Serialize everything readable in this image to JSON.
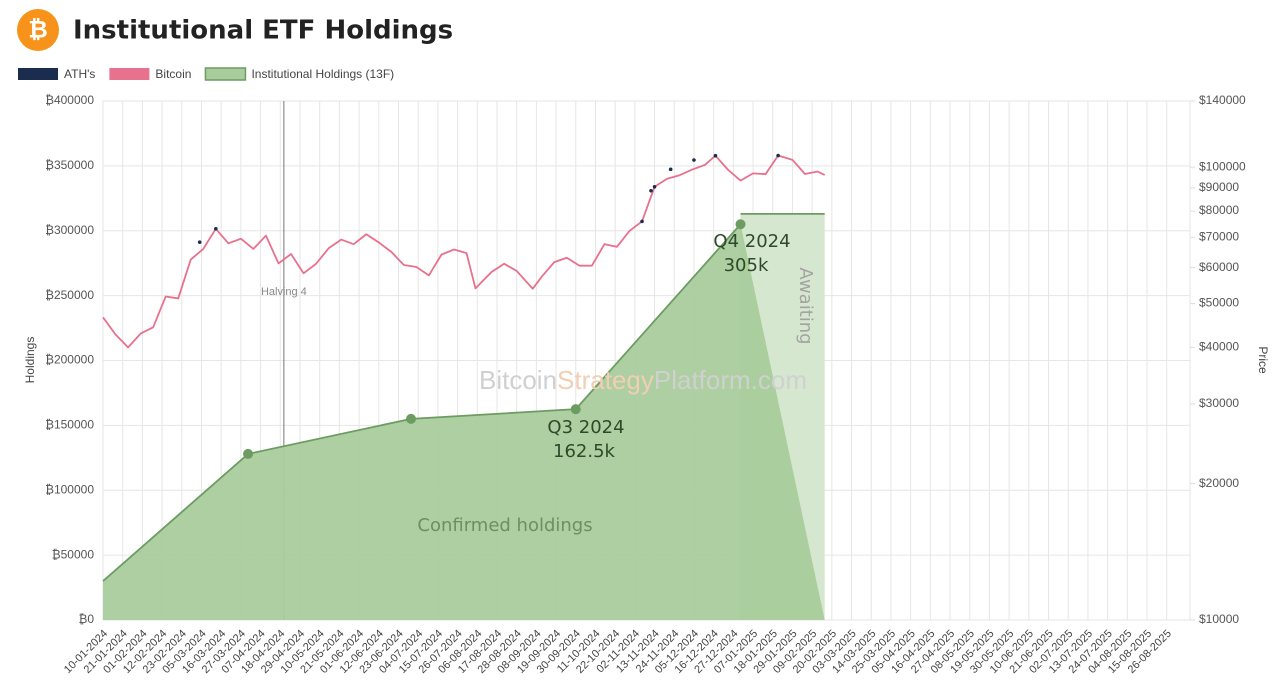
{
  "chart_data": {
    "type": "combo",
    "logo": "₿",
    "title": "Institutional ETF Holdings",
    "ylabel": "Holdings",
    "y2label": "Price",
    "y2_log": true,
    "grid": true,
    "legend": "top-left",
    "xlim": [
      "10-01-2024",
      "08-09-2025"
    ],
    "xticks": [
      "10-01-2024",
      "21-01-2024",
      "01-02-2024",
      "12-02-2024",
      "23-02-2024",
      "05-03-2024",
      "16-03-2024",
      "27-03-2024",
      "07-04-2024",
      "18-04-2024",
      "29-04-2024",
      "10-05-2024",
      "21-05-2024",
      "01-06-2024",
      "12-06-2024",
      "23-06-2024",
      "04-07-2024",
      "15-07-2024",
      "26-07-2024",
      "06-08-2024",
      "17-08-2024",
      "28-08-2024",
      "08-09-2024",
      "19-09-2024",
      "30-09-2024",
      "11-10-2024",
      "22-10-2024",
      "02-11-2024",
      "13-11-2024",
      "24-11-2024",
      "05-12-2024",
      "16-12-2024",
      "27-12-2024",
      "07-01-2025",
      "18-01-2025",
      "29-01-2025",
      "09-02-2025",
      "20-02-2025",
      "03-03-2025",
      "14-03-2025",
      "25-03-2025",
      "05-04-2025",
      "16-04-2025",
      "27-04-2025",
      "08-05-2025",
      "19-05-2025",
      "30-05-2025",
      "10-06-2025",
      "21-06-2025",
      "02-07-2025",
      "13-07-2025",
      "24-07-2025",
      "04-08-2025",
      "15-08-2025",
      "26-08-2025"
    ],
    "ylim": [
      0,
      400000
    ],
    "yticks": [
      {
        "value": 0,
        "label": "₿0"
      },
      {
        "value": 50000,
        "label": "₿50000"
      },
      {
        "value": 100000,
        "label": "₿100000"
      },
      {
        "value": 150000,
        "label": "₿150000"
      },
      {
        "value": 200000,
        "label": "₿200000"
      },
      {
        "value": 250000,
        "label": "₿250000"
      },
      {
        "value": 300000,
        "label": "₿300000"
      },
      {
        "value": 350000,
        "label": "₿350000"
      },
      {
        "value": 400000,
        "label": "₿400000"
      }
    ],
    "y2lim": [
      10000,
      140000
    ],
    "y2ticks": [
      {
        "value": 10000,
        "label": "$10000"
      },
      {
        "value": 20000,
        "label": "$20000"
      },
      {
        "value": 30000,
        "label": "$30000"
      },
      {
        "value": 40000,
        "label": "$40000"
      },
      {
        "value": 50000,
        "label": "$50000"
      },
      {
        "value": 60000,
        "label": "$60000"
      },
      {
        "value": 70000,
        "label": "$70000"
      },
      {
        "value": 80000,
        "label": "$80000"
      },
      {
        "value": 90000,
        "label": "$90000"
      },
      {
        "value": 100000,
        "label": "$100000"
      },
      {
        "value": 140000,
        "label": "$140000"
      }
    ],
    "series": [
      {
        "name": "ATH's",
        "type": "scatter",
        "axis": "y2",
        "color": "#1b2d4f",
        "x": [
          "04-03-2024",
          "13-03-2024",
          "06-11-2024",
          "11-11-2024",
          "13-11-2024",
          "22-11-2024",
          "05-12-2024",
          "17-12-2024",
          "21-01-2025"
        ],
        "values": [
          68300,
          73100,
          75900,
          88700,
          90500,
          98900,
          103700,
          106000,
          106100
        ]
      },
      {
        "name": "Bitcoin",
        "type": "line",
        "axis": "y2",
        "color": "#e8718d",
        "x": [
          "10-01-2024",
          "17-01-2024",
          "24-01-2024",
          "31-01-2024",
          "07-02-2024",
          "14-02-2024",
          "21-02-2024",
          "28-02-2024",
          "06-03-2024",
          "13-03-2024",
          "20-03-2024",
          "27-03-2024",
          "03-04-2024",
          "10-04-2024",
          "17-04-2024",
          "24-04-2024",
          "01-05-2024",
          "08-05-2024",
          "15-05-2024",
          "22-05-2024",
          "29-05-2024",
          "05-06-2024",
          "12-06-2024",
          "19-06-2024",
          "26-06-2024",
          "03-07-2024",
          "10-07-2024",
          "17-07-2024",
          "24-07-2024",
          "31-07-2024",
          "05-08-2024",
          "14-08-2024",
          "21-08-2024",
          "28-08-2024",
          "06-09-2024",
          "11-09-2024",
          "18-09-2024",
          "25-09-2024",
          "02-10-2024",
          "09-10-2024",
          "16-10-2024",
          "23-10-2024",
          "30-10-2024",
          "06-11-2024",
          "13-11-2024",
          "20-11-2024",
          "27-11-2024",
          "04-12-2024",
          "11-12-2024",
          "17-12-2024",
          "24-12-2024",
          "31-12-2024",
          "07-01-2025",
          "14-01-2025",
          "21-01-2025",
          "29-01-2025",
          "05-02-2025",
          "12-02-2025",
          "16-02-2025"
        ],
        "values": [
          46600,
          42700,
          40000,
          42900,
          44300,
          51800,
          51300,
          62500,
          66000,
          73100,
          67900,
          69500,
          66000,
          70600,
          61300,
          64300,
          58300,
          61200,
          66200,
          69200,
          67600,
          71100,
          68200,
          65000,
          60800,
          60200,
          57700,
          64100,
          65800,
          64600,
          54000,
          58700,
          61200,
          59000,
          53900,
          57300,
          61700,
          63100,
          60600,
          60600,
          67600,
          66700,
          72300,
          75900,
          90500,
          94300,
          96000,
          98800,
          101100,
          106000,
          98700,
          93400,
          96900,
          96500,
          106100,
          103800,
          96600,
          97800,
          96100
        ]
      },
      {
        "name": "Institutional Holdings (13F)",
        "type": "area",
        "axis": "y",
        "color": "#6c9c62",
        "fill": "#a9cc9c",
        "x": [
          "10-01-2024",
          "31-03-2024",
          "30-06-2024",
          "30-09-2024",
          "31-12-2024"
        ],
        "values": [
          30000,
          128000,
          155000,
          162500,
          305000
        ]
      }
    ],
    "pending": {
      "x": [
        "31-12-2024",
        "16-02-2025"
      ],
      "values": [
        313000,
        313000
      ],
      "fill": "#d6e7cf"
    },
    "halving": {
      "date": "20-04-2024",
      "label": "Halving 4"
    },
    "annotations": {
      "q3": "Q3 2024",
      "q3_value": "162.5k",
      "q4": "Q4 2024",
      "q4_value": "305k",
      "confirmed": "Confirmed holdings",
      "awaiting": "Awaiting"
    },
    "watermark": [
      "Bitcoin",
      "Strategy",
      "Platform.com"
    ]
  }
}
